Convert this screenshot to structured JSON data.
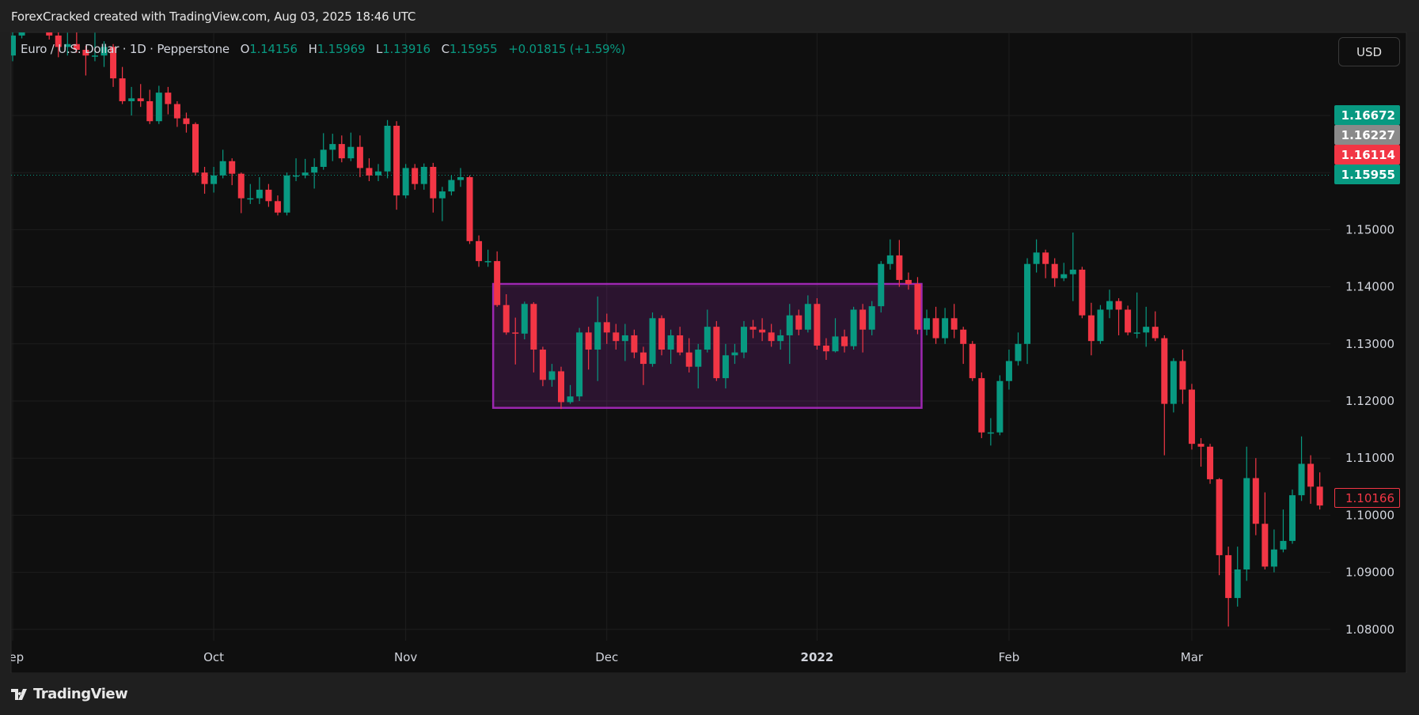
{
  "header": {
    "title": "ForexCracked created with TradingView.com, Aug 03, 2025 18:46 UTC"
  },
  "legend": {
    "symbol": "Euro / U.S. Dollar · 1D · Pepperstone",
    "o_label": "O",
    "o": "1.14156",
    "h_label": "H",
    "h": "1.15969",
    "l_label": "L",
    "l": "1.13916",
    "c_label": "C",
    "c": "1.15955",
    "change": "+0.01815 (+1.59%)"
  },
  "currency_button": "USD",
  "price_tags": [
    {
      "label": "1.16672",
      "color": "#089981"
    },
    {
      "label": "1.16227",
      "color": "#8a8a8a"
    },
    {
      "label": "1.16114",
      "color": "#f23645"
    },
    {
      "label": "1.15955",
      "color": "#089981"
    }
  ],
  "last_price_tag": {
    "label": "1.10166",
    "price": 1.10166,
    "color": "#f23645"
  },
  "current_price_line": 1.15955,
  "footer": {
    "logo_text": "TradingView"
  },
  "colors": {
    "up": "#089981",
    "down": "#f23645",
    "background": "#0f0f0f",
    "grid": "#1e1e1e",
    "box_border": "#9c27b0",
    "box_fill": "rgba(156,39,176,0.2)"
  },
  "chart_data": {
    "type": "candlestick",
    "y_ticks": [
      "1.15000",
      "1.14000",
      "1.13000",
      "1.12000",
      "1.11000",
      "1.10000",
      "1.09000",
      "1.08000"
    ],
    "x_ticks": [
      {
        "label": "Sep",
        "date": "2021-09-01"
      },
      {
        "label": "Oct",
        "date": "2021-10-01"
      },
      {
        "label": "Nov",
        "date": "2021-11-01"
      },
      {
        "label": "Dec",
        "date": "2021-12-01"
      },
      {
        "label": "2022",
        "date": "2022-01-03"
      },
      {
        "label": "Feb",
        "date": "2022-02-01"
      },
      {
        "label": "Mar",
        "date": "2022-03-01"
      }
    ],
    "grid": true,
    "rectangle": {
      "start": "2021-11-15",
      "end": "2022-01-18",
      "top": 1.1405,
      "bottom": 1.1188
    },
    "candles_columns": [
      "date",
      "open",
      "high",
      "low",
      "close"
    ],
    "candles": [
      [
        "2021-09-01",
        1.1805,
        1.1857,
        1.1795,
        1.184
      ],
      [
        "2021-09-02",
        1.184,
        1.1885,
        1.1835,
        1.1875
      ],
      [
        "2021-09-03",
        1.1875,
        1.1909,
        1.1858,
        1.188
      ],
      [
        "2021-09-06",
        1.188,
        1.1885,
        1.186,
        1.187
      ],
      [
        "2021-09-07",
        1.187,
        1.1878,
        1.1833,
        1.184
      ],
      [
        "2021-09-08",
        1.184,
        1.1846,
        1.1802,
        1.182
      ],
      [
        "2021-09-09",
        1.182,
        1.1845,
        1.1805,
        1.1825
      ],
      [
        "2021-09-10",
        1.1825,
        1.1848,
        1.181,
        1.1815
      ],
      [
        "2021-09-13",
        1.1815,
        1.1822,
        1.177,
        1.1805
      ],
      [
        "2021-09-14",
        1.1805,
        1.1845,
        1.1795,
        1.1805
      ],
      [
        "2021-09-15",
        1.1805,
        1.183,
        1.1785,
        1.182
      ],
      [
        "2021-09-16",
        1.182,
        1.1825,
        1.175,
        1.1765
      ],
      [
        "2021-09-17",
        1.1765,
        1.1785,
        1.172,
        1.1725
      ],
      [
        "2021-09-20",
        1.1725,
        1.175,
        1.17,
        1.173
      ],
      [
        "2021-09-21",
        1.173,
        1.1755,
        1.1715,
        1.1725
      ],
      [
        "2021-09-22",
        1.1725,
        1.1745,
        1.1685,
        1.169
      ],
      [
        "2021-09-23",
        1.169,
        1.1752,
        1.1685,
        1.174
      ],
      [
        "2021-09-24",
        1.174,
        1.175,
        1.1702,
        1.172
      ],
      [
        "2021-09-27",
        1.172,
        1.1725,
        1.168,
        1.1695
      ],
      [
        "2021-09-28",
        1.1695,
        1.1705,
        1.167,
        1.1685
      ],
      [
        "2021-09-29",
        1.1685,
        1.1688,
        1.1595,
        1.16
      ],
      [
        "2021-09-30",
        1.16,
        1.161,
        1.1563,
        1.158
      ],
      [
        "2021-10-01",
        1.158,
        1.161,
        1.1565,
        1.1595
      ],
      [
        "2021-10-04",
        1.1595,
        1.164,
        1.159,
        1.162
      ],
      [
        "2021-10-05",
        1.162,
        1.1625,
        1.1578,
        1.1598
      ],
      [
        "2021-10-06",
        1.1598,
        1.16,
        1.1529,
        1.1555
      ],
      [
        "2021-10-07",
        1.1555,
        1.158,
        1.1545,
        1.1555
      ],
      [
        "2021-10-08",
        1.1555,
        1.1592,
        1.1545,
        1.157
      ],
      [
        "2021-10-11",
        1.157,
        1.158,
        1.154,
        1.155
      ],
      [
        "2021-10-12",
        1.155,
        1.156,
        1.1525,
        1.153
      ],
      [
        "2021-10-13",
        1.153,
        1.16,
        1.1525,
        1.1595
      ],
      [
        "2021-10-14",
        1.1595,
        1.1625,
        1.1585,
        1.1595
      ],
      [
        "2021-10-15",
        1.1595,
        1.1624,
        1.159,
        1.16
      ],
      [
        "2021-10-18",
        1.16,
        1.1625,
        1.1572,
        1.161
      ],
      [
        "2021-10-19",
        1.161,
        1.1669,
        1.1605,
        1.164
      ],
      [
        "2021-10-20",
        1.164,
        1.1668,
        1.162,
        1.165
      ],
      [
        "2021-10-21",
        1.165,
        1.1665,
        1.1618,
        1.1625
      ],
      [
        "2021-10-22",
        1.1625,
        1.167,
        1.162,
        1.1645
      ],
      [
        "2021-10-25",
        1.1645,
        1.1665,
        1.1592,
        1.1608
      ],
      [
        "2021-10-26",
        1.1608,
        1.1625,
        1.1585,
        1.1595
      ],
      [
        "2021-10-27",
        1.1595,
        1.1615,
        1.1585,
        1.1602
      ],
      [
        "2021-10-28",
        1.1602,
        1.1692,
        1.159,
        1.1682
      ],
      [
        "2021-10-29",
        1.1682,
        1.169,
        1.1535,
        1.156
      ],
      [
        "2021-11-01",
        1.156,
        1.1615,
        1.1555,
        1.1608
      ],
      [
        "2021-11-02",
        1.1608,
        1.1615,
        1.157,
        1.158
      ],
      [
        "2021-11-03",
        1.158,
        1.1616,
        1.157,
        1.161
      ],
      [
        "2021-11-04",
        1.161,
        1.1617,
        1.153,
        1.1555
      ],
      [
        "2021-11-05",
        1.1555,
        1.1575,
        1.1515,
        1.1567
      ],
      [
        "2021-11-08",
        1.1567,
        1.1595,
        1.156,
        1.1587
      ],
      [
        "2021-11-09",
        1.1587,
        1.1608,
        1.1575,
        1.1592
      ],
      [
        "2021-11-10",
        1.1592,
        1.1595,
        1.1475,
        1.148
      ],
      [
        "2021-11-11",
        1.148,
        1.149,
        1.1435,
        1.1445
      ],
      [
        "2021-11-12",
        1.1445,
        1.1465,
        1.1435,
        1.1445
      ],
      [
        "2021-11-15",
        1.1445,
        1.1462,
        1.1365,
        1.1368
      ],
      [
        "2021-11-16",
        1.1368,
        1.1387,
        1.1316,
        1.132
      ],
      [
        "2021-11-17",
        1.132,
        1.1346,
        1.1264,
        1.1318
      ],
      [
        "2021-11-18",
        1.1318,
        1.1374,
        1.1308,
        1.137
      ],
      [
        "2021-11-19",
        1.137,
        1.1373,
        1.125,
        1.129
      ],
      [
        "2021-11-22",
        1.129,
        1.1295,
        1.1226,
        1.1237
      ],
      [
        "2021-11-23",
        1.1237,
        1.1265,
        1.1225,
        1.1252
      ],
      [
        "2021-11-24",
        1.1252,
        1.126,
        1.1186,
        1.1198
      ],
      [
        "2021-11-25",
        1.1198,
        1.1228,
        1.1195,
        1.1208
      ],
      [
        "2021-11-26",
        1.1208,
        1.1328,
        1.12,
        1.132
      ],
      [
        "2021-11-29",
        1.132,
        1.133,
        1.1255,
        1.129
      ],
      [
        "2021-11-30",
        1.129,
        1.1383,
        1.1235,
        1.1338
      ],
      [
        "2021-12-01",
        1.1338,
        1.1353,
        1.13,
        1.132
      ],
      [
        "2021-12-02",
        1.132,
        1.1335,
        1.129,
        1.1305
      ],
      [
        "2021-12-03",
        1.1305,
        1.1335,
        1.127,
        1.1315
      ],
      [
        "2021-12-06",
        1.1315,
        1.1325,
        1.1275,
        1.1285
      ],
      [
        "2021-12-07",
        1.1285,
        1.1295,
        1.1228,
        1.1265
      ],
      [
        "2021-12-08",
        1.1265,
        1.1355,
        1.126,
        1.1345
      ],
      [
        "2021-12-09",
        1.1345,
        1.135,
        1.128,
        1.129
      ],
      [
        "2021-12-10",
        1.129,
        1.1325,
        1.1265,
        1.1315
      ],
      [
        "2021-12-13",
        1.1315,
        1.133,
        1.128,
        1.1285
      ],
      [
        "2021-12-14",
        1.1285,
        1.131,
        1.125,
        1.126
      ],
      [
        "2021-12-15",
        1.126,
        1.13,
        1.1222,
        1.129
      ],
      [
        "2021-12-16",
        1.129,
        1.136,
        1.1285,
        1.133
      ],
      [
        "2021-12-17",
        1.133,
        1.134,
        1.1235,
        1.124
      ],
      [
        "2021-12-20",
        1.124,
        1.13,
        1.1222,
        1.128
      ],
      [
        "2021-12-21",
        1.128,
        1.13,
        1.1265,
        1.1285
      ],
      [
        "2021-12-22",
        1.1285,
        1.134,
        1.1275,
        1.133
      ],
      [
        "2021-12-23",
        1.133,
        1.1342,
        1.131,
        1.1325
      ],
      [
        "2021-12-24",
        1.1325,
        1.1345,
        1.1305,
        1.132
      ],
      [
        "2021-12-27",
        1.132,
        1.1335,
        1.1295,
        1.1305
      ],
      [
        "2021-12-28",
        1.1305,
        1.1325,
        1.129,
        1.1315
      ],
      [
        "2021-12-29",
        1.1315,
        1.137,
        1.1265,
        1.135
      ],
      [
        "2021-12-30",
        1.135,
        1.136,
        1.1315,
        1.1325
      ],
      [
        "2021-12-31",
        1.1325,
        1.1385,
        1.132,
        1.137
      ],
      [
        "2022-01-03",
        1.137,
        1.138,
        1.129,
        1.1297
      ],
      [
        "2022-01-04",
        1.1297,
        1.131,
        1.1272,
        1.1287
      ],
      [
        "2022-01-05",
        1.1287,
        1.1345,
        1.1285,
        1.1313
      ],
      [
        "2022-01-06",
        1.1313,
        1.1325,
        1.1285,
        1.1296
      ],
      [
        "2022-01-07",
        1.1296,
        1.1365,
        1.129,
        1.136
      ],
      [
        "2022-01-10",
        1.136,
        1.137,
        1.1285,
        1.1325
      ],
      [
        "2022-01-11",
        1.1325,
        1.1375,
        1.1315,
        1.1366
      ],
      [
        "2022-01-12",
        1.1366,
        1.1445,
        1.1355,
        1.144
      ],
      [
        "2022-01-13",
        1.144,
        1.1483,
        1.143,
        1.1455
      ],
      [
        "2022-01-14",
        1.1455,
        1.1482,
        1.14,
        1.1412
      ],
      [
        "2022-01-17",
        1.1412,
        1.1425,
        1.1395,
        1.1405
      ],
      [
        "2022-01-18",
        1.1405,
        1.1417,
        1.1317,
        1.1325
      ],
      [
        "2022-01-19",
        1.1325,
        1.136,
        1.1315,
        1.1345
      ],
      [
        "2022-01-20",
        1.1345,
        1.1365,
        1.13,
        1.131
      ],
      [
        "2022-01-21",
        1.131,
        1.1363,
        1.13,
        1.1345
      ],
      [
        "2022-01-24",
        1.1345,
        1.137,
        1.131,
        1.1325
      ],
      [
        "2022-01-25",
        1.1325,
        1.133,
        1.1265,
        1.13
      ],
      [
        "2022-01-26",
        1.13,
        1.1305,
        1.1235,
        1.124
      ],
      [
        "2022-01-27",
        1.124,
        1.125,
        1.1135,
        1.1145
      ],
      [
        "2022-01-28",
        1.1145,
        1.117,
        1.1122,
        1.1145
      ],
      [
        "2022-01-31",
        1.1145,
        1.1245,
        1.114,
        1.1235
      ],
      [
        "2022-02-01",
        1.1235,
        1.129,
        1.122,
        1.127
      ],
      [
        "2022-02-02",
        1.127,
        1.132,
        1.1262,
        1.13
      ],
      [
        "2022-02-03",
        1.13,
        1.145,
        1.1265,
        1.144
      ],
      [
        "2022-02-04",
        1.144,
        1.1483,
        1.1425,
        1.146
      ],
      [
        "2022-02-07",
        1.146,
        1.1465,
        1.1415,
        1.144
      ],
      [
        "2022-02-08",
        1.144,
        1.145,
        1.14,
        1.1415
      ],
      [
        "2022-02-09",
        1.1415,
        1.1442,
        1.141,
        1.1422
      ],
      [
        "2022-02-10",
        1.1422,
        1.1495,
        1.1375,
        1.143
      ],
      [
        "2022-02-11",
        1.143,
        1.1435,
        1.1345,
        1.135
      ],
      [
        "2022-02-14",
        1.135,
        1.1372,
        1.128,
        1.1305
      ],
      [
        "2022-02-15",
        1.1305,
        1.1368,
        1.13,
        1.136
      ],
      [
        "2022-02-16",
        1.136,
        1.1395,
        1.1345,
        1.1375
      ],
      [
        "2022-02-17",
        1.1375,
        1.138,
        1.1315,
        1.136
      ],
      [
        "2022-02-18",
        1.136,
        1.1367,
        1.1315,
        1.132
      ],
      [
        "2022-02-21",
        1.132,
        1.139,
        1.131,
        1.132
      ],
      [
        "2022-02-22",
        1.132,
        1.1365,
        1.1295,
        1.133
      ],
      [
        "2022-02-23",
        1.133,
        1.1357,
        1.1305,
        1.131
      ],
      [
        "2022-02-24",
        1.131,
        1.1315,
        1.1105,
        1.1195
      ],
      [
        "2022-02-25",
        1.1195,
        1.1275,
        1.118,
        1.127
      ],
      [
        "2022-02-28",
        1.127,
        1.129,
        1.1195,
        1.122
      ],
      [
        "2022-03-01",
        1.122,
        1.123,
        1.1115,
        1.1125
      ],
      [
        "2022-03-02",
        1.1125,
        1.1135,
        1.1085,
        1.112
      ],
      [
        "2022-03-03",
        1.112,
        1.1125,
        1.1055,
        1.1063
      ],
      [
        "2022-03-04",
        1.1063,
        1.1065,
        1.0895,
        1.093
      ],
      [
        "2022-03-07",
        1.093,
        1.0945,
        1.0805,
        1.0855
      ],
      [
        "2022-03-08",
        1.0855,
        1.0945,
        1.084,
        1.0905
      ],
      [
        "2022-03-09",
        1.0905,
        1.112,
        1.0885,
        1.1065
      ],
      [
        "2022-03-10",
        1.1065,
        1.11,
        1.0965,
        1.0985
      ],
      [
        "2022-03-11",
        1.0985,
        1.104,
        1.0905,
        1.091
      ],
      [
        "2022-03-14",
        1.091,
        1.0975,
        1.09,
        1.094
      ],
      [
        "2022-03-15",
        1.094,
        1.101,
        1.0935,
        1.0955
      ],
      [
        "2022-03-16",
        1.0955,
        1.1045,
        1.095,
        1.1035
      ],
      [
        "2022-03-17",
        1.1035,
        1.1138,
        1.1025,
        1.109
      ],
      [
        "2022-03-18",
        1.109,
        1.1105,
        1.102,
        1.105
      ],
      [
        "2022-03-21",
        1.105,
        1.1075,
        1.101,
        1.1017
      ]
    ]
  }
}
